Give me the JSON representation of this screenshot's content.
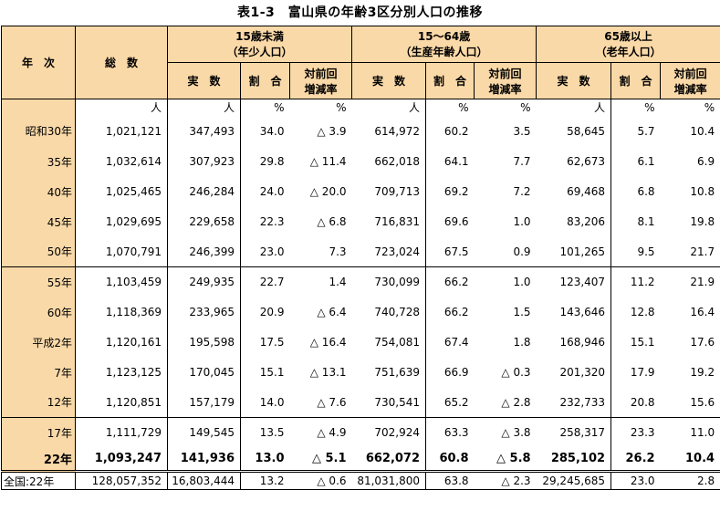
{
  "title": "表1-3　富山県の年齢3区分別人口の推移",
  "headers": {
    "year": "年　次",
    "total": "総　数",
    "groups": [
      {
        "line1": "15歳未満",
        "line2": "（年少人口）"
      },
      {
        "line1": "15～64歳",
        "line2": "（生産年齢人口）"
      },
      {
        "line1": "65歳以上",
        "line2": "（老年人口）"
      }
    ],
    "sub": {
      "actual": "実　数",
      "ratio": "割　合",
      "change1": "対前回",
      "change2": "増減率"
    }
  },
  "units": [
    "人",
    "人",
    "%",
    "%",
    "人",
    "%",
    "%",
    "人",
    "%",
    "%"
  ],
  "rows": [
    {
      "year": "昭和30年",
      "cells": [
        "1,021,121",
        "347,493",
        "34.0",
        "△ 3.9",
        "614,972",
        "60.2",
        "3.5",
        "58,645",
        "5.7",
        "10.4"
      ]
    },
    {
      "year": "35年",
      "cells": [
        "1,032,614",
        "307,923",
        "29.8",
        "△ 11.4",
        "662,018",
        "64.1",
        "7.7",
        "62,673",
        "6.1",
        "6.9"
      ]
    },
    {
      "year": "40年",
      "cells": [
        "1,025,465",
        "246,284",
        "24.0",
        "△ 20.0",
        "709,713",
        "69.2",
        "7.2",
        "69,468",
        "6.8",
        "10.8"
      ]
    },
    {
      "year": "45年",
      "cells": [
        "1,029,695",
        "229,658",
        "22.3",
        "△ 6.8",
        "716,831",
        "69.6",
        "1.0",
        "83,206",
        "8.1",
        "19.8"
      ]
    },
    {
      "year": "50年",
      "cells": [
        "1,070,791",
        "246,399",
        "23.0",
        "7.3",
        "723,024",
        "67.5",
        "0.9",
        "101,265",
        "9.5",
        "21.7"
      ]
    },
    {
      "year": "55年",
      "cells": [
        "1,103,459",
        "249,935",
        "22.7",
        "1.4",
        "730,099",
        "66.2",
        "1.0",
        "123,407",
        "11.2",
        "21.9"
      ]
    },
    {
      "year": "60年",
      "cells": [
        "1,118,369",
        "233,965",
        "20.9",
        "△ 6.4",
        "740,728",
        "66.2",
        "1.5",
        "143,646",
        "12.8",
        "16.4"
      ]
    },
    {
      "year": "平成2年",
      "cells": [
        "1,120,161",
        "195,598",
        "17.5",
        "△ 16.4",
        "754,081",
        "67.4",
        "1.8",
        "168,946",
        "15.1",
        "17.6"
      ]
    },
    {
      "year": "7年",
      "cells": [
        "1,123,125",
        "170,045",
        "15.1",
        "△ 13.1",
        "751,639",
        "66.9",
        "△ 0.3",
        "201,320",
        "17.9",
        "19.2"
      ]
    },
    {
      "year": "12年",
      "cells": [
        "1,120,851",
        "157,179",
        "14.0",
        "△ 7.6",
        "730,541",
        "65.2",
        "△ 2.8",
        "232,733",
        "20.8",
        "15.6"
      ]
    },
    {
      "year": "17年",
      "cells": [
        "1,111,729",
        "149,545",
        "13.5",
        "△ 4.9",
        "702,924",
        "63.3",
        "△ 3.8",
        "258,317",
        "23.3",
        "11.0"
      ]
    },
    {
      "year": "22年",
      "cells": [
        "1,093,247",
        "141,936",
        "13.0",
        "△ 5.1",
        "662,072",
        "60.8",
        "△ 5.8",
        "285,102",
        "26.2",
        "10.4"
      ]
    },
    {
      "year": "全国:22年",
      "cells": [
        "128,057,352",
        "16,803,444",
        "13.2",
        "△ 0.6",
        "81,031,800",
        "63.8",
        "△ 2.3",
        "29,245,685",
        "23.0",
        "2.8"
      ]
    }
  ]
}
